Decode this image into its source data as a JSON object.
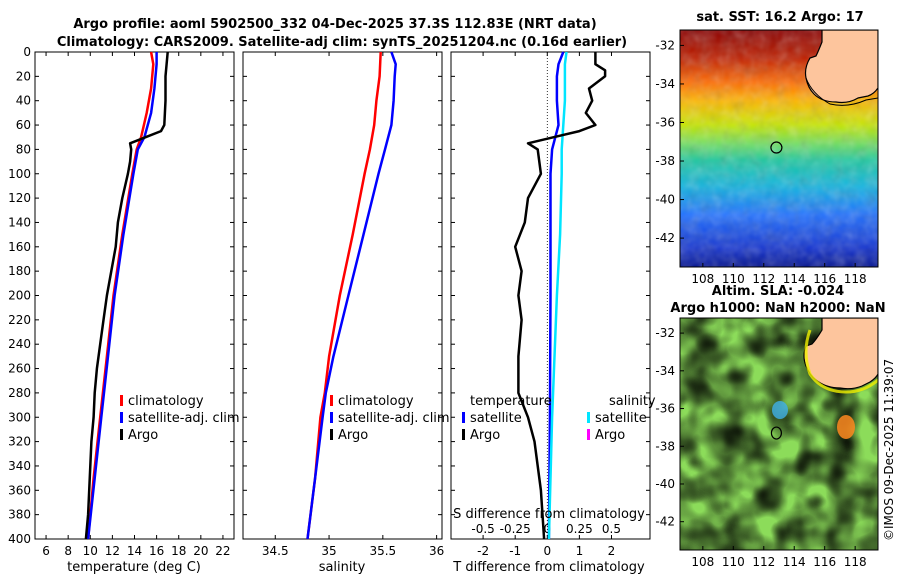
{
  "header": {
    "line1": "Argo profile: aoml 5902500_332 04-Dec-2025 37.3S 112.83E (NRT data)",
    "line2": "Climatology: CARS2009. Satellite-adj clim: synTS_20251204.nc (0.16d earlier)"
  },
  "timestamp": "©IMOS 09-Dec-2025 11:39:07",
  "colors": {
    "climatology": "#ff0000",
    "satellite": "#0000ff",
    "argo": "#000000",
    "salinity_satellite": "#00e5ff",
    "salinity_argo": "#ff00ff",
    "land": "#fdc59d"
  },
  "chart_data": [
    {
      "id": "temperature",
      "type": "line",
      "xlabel": "temperature (deg C)",
      "xlim": [
        5,
        23
      ],
      "xticks": [
        6,
        8,
        10,
        12,
        14,
        16,
        18,
        20,
        22
      ],
      "ylim": [
        0,
        400
      ],
      "yticks": [
        0,
        20,
        40,
        60,
        80,
        100,
        120,
        140,
        160,
        180,
        200,
        220,
        240,
        260,
        280,
        300,
        320,
        340,
        360,
        380,
        400
      ],
      "legend": [
        "climatology",
        "satellite-adj. clim",
        "Argo"
      ],
      "series": [
        {
          "name": "climatology",
          "color": "#ff0000",
          "depth": [
            0,
            10,
            30,
            50,
            70,
            80,
            100,
            150,
            200,
            250,
            300,
            350,
            400
          ],
          "values": [
            15.5,
            15.7,
            15.5,
            15.1,
            14.6,
            14.2,
            13.8,
            12.9,
            12.1,
            11.5,
            10.9,
            10.3,
            9.8
          ]
        },
        {
          "name": "satellite-adj. clim",
          "color": "#0000ff",
          "depth": [
            0,
            10,
            30,
            50,
            70,
            80,
            100,
            150,
            200,
            250,
            300,
            350,
            400
          ],
          "values": [
            16.0,
            16.0,
            15.8,
            15.5,
            14.9,
            14.3,
            13.9,
            13.0,
            12.2,
            11.6,
            11.0,
            10.4,
            9.8
          ]
        },
        {
          "name": "Argo",
          "color": "#000000",
          "depth": [
            0,
            10,
            20,
            40,
            60,
            65,
            70,
            75,
            80,
            90,
            100,
            120,
            140,
            160,
            180,
            200,
            220,
            240,
            260,
            280,
            300,
            320,
            340,
            360,
            380,
            400
          ],
          "values": [
            17.0,
            16.9,
            16.8,
            16.8,
            16.7,
            16.4,
            15.0,
            13.6,
            13.7,
            13.6,
            13.4,
            12.9,
            12.5,
            12.3,
            11.9,
            11.5,
            11.2,
            10.9,
            10.6,
            10.4,
            10.3,
            10.1,
            10.0,
            9.9,
            9.8,
            9.6
          ]
        }
      ]
    },
    {
      "id": "salinity",
      "type": "line",
      "xlabel": "salinity",
      "xlim": [
        34.2,
        36.05
      ],
      "xticks": [
        34.5,
        35,
        35.5,
        36
      ],
      "ylim": [
        0,
        400
      ],
      "legend": [
        "climatology",
        "satellite-adj. clim",
        "Argo"
      ],
      "series": [
        {
          "name": "climatology",
          "color": "#ff0000",
          "depth": [
            0,
            20,
            40,
            60,
            80,
            100,
            150,
            200,
            250,
            280,
            300,
            350,
            400
          ],
          "values": [
            35.48,
            35.47,
            35.44,
            35.42,
            35.38,
            35.33,
            35.22,
            35.1,
            35.0,
            34.96,
            34.92,
            34.87,
            34.8
          ]
        },
        {
          "name": "satellite-adj. clim",
          "color": "#0000ff",
          "depth": [
            0,
            10,
            20,
            40,
            60,
            80,
            100,
            150,
            200,
            250,
            280,
            300,
            350,
            400
          ],
          "values": [
            35.58,
            35.62,
            35.61,
            35.6,
            35.58,
            35.52,
            35.46,
            35.32,
            35.18,
            35.04,
            34.97,
            34.94,
            34.87,
            34.8
          ]
        }
      ]
    },
    {
      "id": "difference",
      "type": "line",
      "xlabel": "T difference from climatology",
      "xlabel_top": "S difference from climatology",
      "xlim": [
        -3,
        3.2
      ],
      "xticks": [
        -2,
        -1,
        0,
        1,
        2
      ],
      "xticks_top_labels": [
        "-0.5",
        "-0.25",
        "0",
        "0.25",
        "0.5"
      ],
      "xticks_top_values": [
        -2,
        -1,
        0,
        1,
        2
      ],
      "ylim": [
        0,
        400
      ],
      "legend_temperature_title": "temperature",
      "legend_salinity_title": "salinity",
      "legend_temperature": [
        "satellite",
        "Argo"
      ],
      "legend_salinity": [
        "satellite",
        "Argo"
      ],
      "series": [
        {
          "name": "temperature satellite",
          "color": "#0000ff",
          "depth": [
            0,
            10,
            20,
            40,
            60,
            80,
            100,
            150,
            200,
            300,
            400
          ],
          "values": [
            0.5,
            0.35,
            0.3,
            0.3,
            0.35,
            0.15,
            0.1,
            0.1,
            0.1,
            0.08,
            0.05
          ]
        },
        {
          "name": "salinity satellite",
          "color": "#00e5ff",
          "depth": [
            0,
            10,
            20,
            40,
            60,
            80,
            100,
            150,
            200,
            300,
            400
          ],
          "values": [
            0.6,
            0.55,
            0.55,
            0.55,
            0.5,
            0.45,
            0.45,
            0.4,
            0.3,
            0.15,
            0.05
          ]
        },
        {
          "name": "temperature Argo",
          "color": "#000000",
          "depth": [
            0,
            10,
            15,
            20,
            30,
            40,
            50,
            60,
            65,
            70,
            75,
            80,
            100,
            120,
            140,
            160,
            180,
            200,
            220,
            250,
            280,
            300,
            320,
            340,
            360,
            380,
            400
          ],
          "values": [
            1.5,
            1.5,
            1.8,
            1.8,
            1.3,
            1.4,
            1.2,
            1.5,
            1.0,
            0.2,
            -0.6,
            -0.3,
            -0.2,
            -0.6,
            -0.7,
            -1.0,
            -0.8,
            -0.9,
            -0.8,
            -0.9,
            -0.9,
            -0.6,
            -0.4,
            -0.3,
            -0.2,
            -0.15,
            -0.1
          ]
        }
      ]
    },
    {
      "id": "sst-map",
      "type": "heatmap",
      "title": "sat. SST: 16.2 Argo: 17",
      "xticks": [
        108,
        110,
        112,
        114,
        116,
        118
      ],
      "yticks": [
        -32,
        -34,
        -36,
        -38,
        -40,
        -42
      ],
      "xlim": [
        106.5,
        119.5
      ],
      "ylim": [
        -43.5,
        -31.2
      ],
      "marker": {
        "lon": 112.83,
        "lat": -37.3
      }
    },
    {
      "id": "sla-map",
      "type": "heatmap",
      "title_line1": "Altim. SLA: -0.024",
      "title_line2": "Argo h1000: NaN h2000: NaN",
      "xticks": [
        108,
        110,
        112,
        114,
        116,
        118
      ],
      "yticks": [
        -32,
        -34,
        -36,
        -38,
        -40,
        -42
      ],
      "xlim": [
        106.5,
        119.5
      ],
      "ylim": [
        -43.5,
        -31.2
      ],
      "marker": {
        "lon": 112.83,
        "lat": -37.3
      }
    }
  ]
}
